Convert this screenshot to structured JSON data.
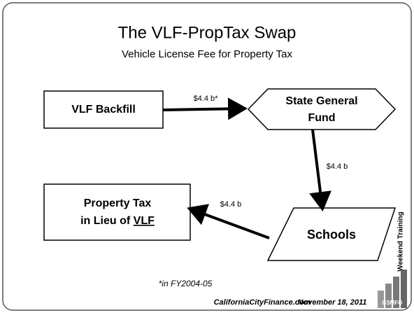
{
  "title": "The VLF-PropTax Swap",
  "subtitle": "Vehicle License Fee for Property Tax",
  "nodes": [
    {
      "label": "VLF Backfill"
    },
    {
      "label_lines": [
        "State General",
        "Fund"
      ]
    },
    {
      "label_lines": [
        "Property Tax",
        "in Lieu of"
      ],
      "label_underlined": "VLF"
    },
    {
      "label": "Schools"
    }
  ],
  "edges": [
    {
      "label": "$4.4 b*"
    },
    {
      "label": "$4.4 b"
    },
    {
      "label": "$4.4 b"
    }
  ],
  "footnote": "*in FY2004-05",
  "footer": {
    "site": "CaliforniaCityFinance.com",
    "date": "November 18, 2011",
    "side_label": "Weekend Training",
    "logo": "CSMFO"
  }
}
